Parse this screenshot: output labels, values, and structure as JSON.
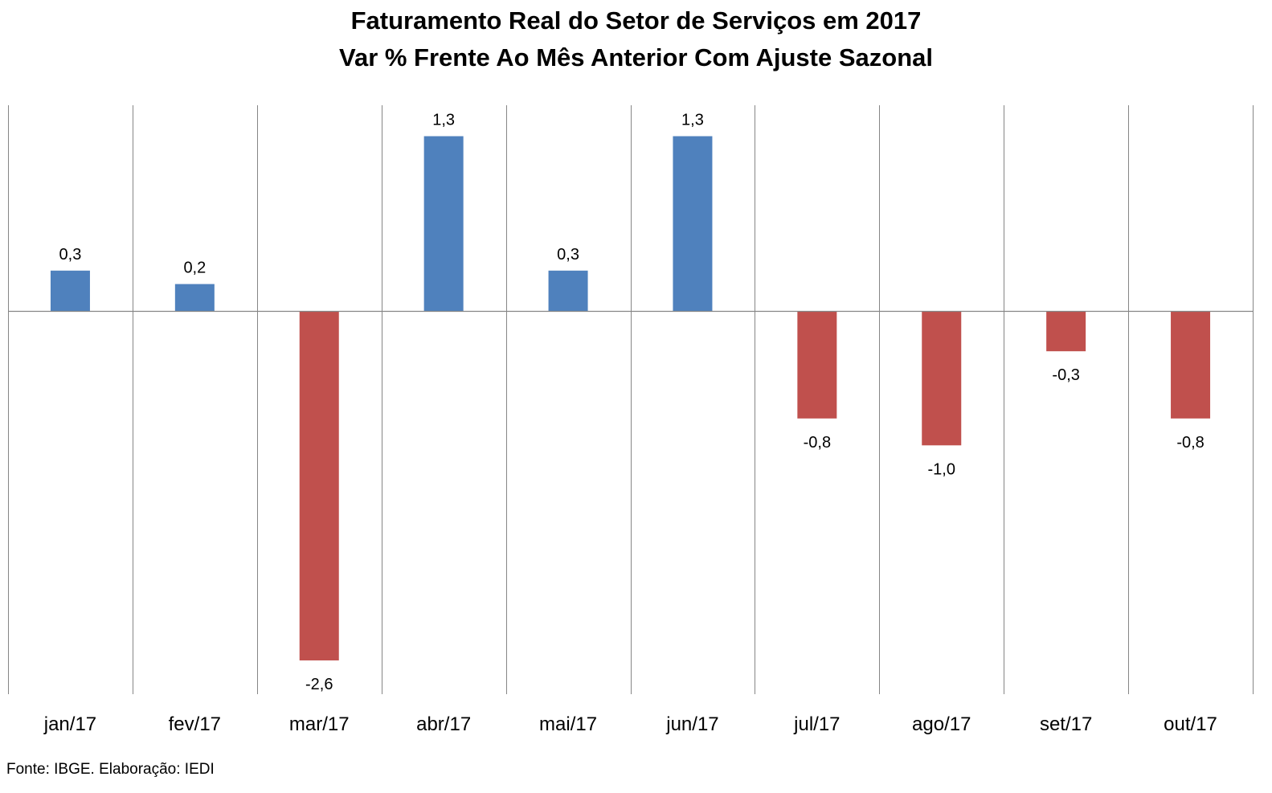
{
  "chart_data": {
    "type": "bar",
    "title": "Faturamento Real do Setor de Serviços em 2017",
    "subtitle": "Var % Frente Ao Mês Anterior Com Ajuste Sazonal",
    "xlabel": "",
    "ylabel": "",
    "categories": [
      "jan/17",
      "fev/17",
      "mar/17",
      "abr/17",
      "mai/17",
      "jun/17",
      "jul/17",
      "ago/17",
      "set/17",
      "out/17"
    ],
    "values": [
      0.3,
      0.2,
      -2.6,
      1.3,
      0.3,
      1.3,
      -0.8,
      -1.0,
      -0.3,
      -0.8
    ],
    "data_labels": [
      "0,3",
      "0,2",
      "-2,6",
      "1,3",
      "0,3",
      "1,3",
      "-0,8",
      "-1,0",
      "-0,3",
      "-0,8"
    ],
    "colors": {
      "positive": "#4F81BD",
      "negative": "#C0504D",
      "grid": "#868686"
    },
    "ylim": [
      -2.8,
      1.55
    ],
    "grid": "vertical",
    "legend": "none"
  },
  "source": "Fonte: IBGE. Elaboração: IEDI"
}
